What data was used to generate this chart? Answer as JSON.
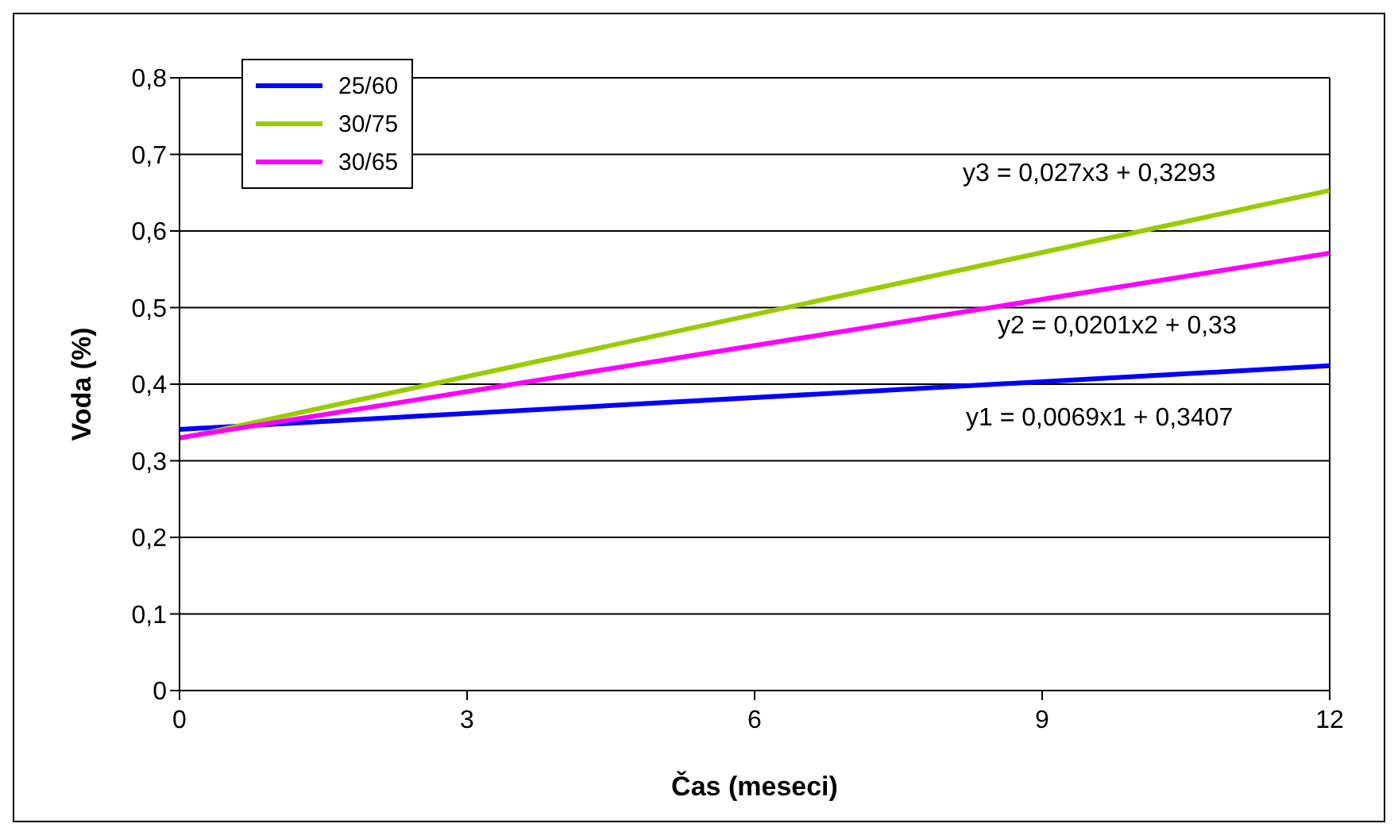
{
  "chart_data": {
    "type": "line",
    "xlabel": "Čas (meseci)",
    "ylabel": "Voda (%)",
    "x": [
      0,
      12
    ],
    "series": [
      {
        "name": "25/60",
        "color": "#0000ff",
        "values": [
          0.341,
          0.424
        ]
      },
      {
        "name": "30/75",
        "color": "#99cc00",
        "values": [
          0.329,
          0.653
        ]
      },
      {
        "name": "30/65",
        "color": "#ff00ff",
        "values": [
          0.33,
          0.571
        ]
      }
    ],
    "xlim": [
      0,
      12
    ],
    "xticks": [
      0,
      3,
      6,
      9,
      12
    ],
    "ylim": [
      0,
      0.8
    ],
    "yticks": [
      0,
      {
        "value": 0.1,
        "label": "0,1"
      },
      {
        "value": 0.2,
        "label": "0,2"
      },
      {
        "value": 0.3,
        "label": "0,3"
      },
      {
        "value": 0.4,
        "label": "0,4"
      },
      {
        "value": 0.5,
        "label": "0,5"
      },
      {
        "value": 0.6,
        "label": "0,6"
      },
      {
        "value": 0.7,
        "label": "0,7"
      },
      {
        "value": 0.8,
        "label": "0,8"
      }
    ],
    "grid": "y",
    "legend": "top left",
    "marker": "none",
    "line_style": "solid",
    "annotations": [
      "y3 = 0,027x3 + 0,3293",
      "y2 = 0,0201x2 + 0,33",
      "y1 = 0,0069x1 + 0,3407"
    ]
  }
}
